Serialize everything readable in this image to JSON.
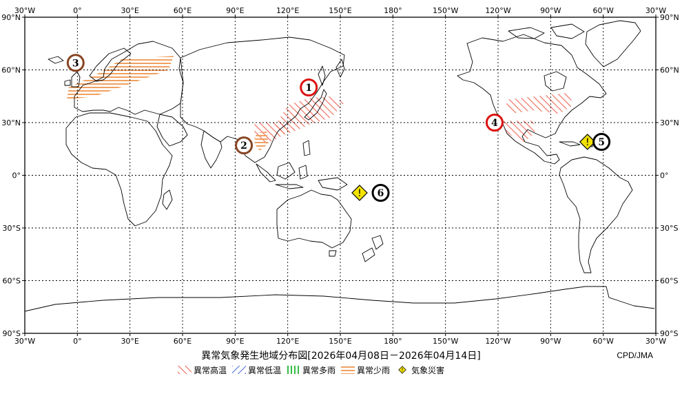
{
  "title": "異常気象発生地域分布図[2026年04月08日－2026年04月14日]",
  "credit": "CPD/JMA",
  "axes": {
    "lon_labels": [
      "30°W",
      "0°",
      "30°E",
      "60°E",
      "90°E",
      "120°E",
      "150°E",
      "180°",
      "150°W",
      "120°W",
      "90°W",
      "60°W",
      "30°W"
    ],
    "lat_labels": [
      "90°N",
      "60°N",
      "30°N",
      "0°",
      "30°S",
      "60°S",
      "90°S"
    ]
  },
  "legend": [
    {
      "label": "異常高温",
      "color": "#ee6655",
      "pattern": "hot"
    },
    {
      "label": "異常低温",
      "color": "#4466dd",
      "pattern": "cold"
    },
    {
      "label": "異常多雨",
      "color": "#33bb44",
      "pattern": "wet"
    },
    {
      "label": "異常少雨",
      "color": "#f0a060",
      "pattern": "dry"
    },
    {
      "label": "気象災害",
      "color": "#f2e200",
      "pattern": "disaster"
    }
  ],
  "markers": [
    {
      "num": "1",
      "color": "#dd1111",
      "lon": 132,
      "lat": 50
    },
    {
      "num": "2",
      "color": "#884422",
      "lon": 95,
      "lat": 17
    },
    {
      "num": "3",
      "color": "#884422",
      "lon": -1,
      "lat": 64
    },
    {
      "num": "4",
      "color": "#dd1111",
      "lon": -122,
      "lat": 30
    },
    {
      "num": "5",
      "color": "#000000",
      "lon": -61,
      "lat": 19
    },
    {
      "num": "6",
      "color": "#000000",
      "lon": 173,
      "lat": -10
    }
  ],
  "disasters": [
    {
      "lon": -69,
      "lat": 19
    },
    {
      "lon": 161,
      "lat": -10
    }
  ],
  "anomaly_areas": [
    {
      "type": "hot",
      "coords": [
        [
          -116,
          43
        ],
        [
          -80,
          47
        ],
        [
          -77,
          40
        ],
        [
          -85,
          35
        ],
        [
          -100,
          37
        ],
        [
          -113,
          35
        ]
      ]
    },
    {
      "type": "hot",
      "coords": [
        [
          -117,
          31
        ],
        [
          -100,
          31
        ],
        [
          -99,
          24
        ],
        [
          -105,
          19
        ],
        [
          -110,
          21
        ],
        [
          -116,
          25
        ]
      ]
    },
    {
      "type": "hot",
      "coords": [
        [
          120,
          40
        ],
        [
          132,
          44
        ],
        [
          146,
          45
        ],
        [
          152,
          41
        ],
        [
          145,
          33
        ],
        [
          133,
          29
        ],
        [
          119,
          23
        ],
        [
          112,
          27
        ]
      ]
    },
    {
      "type": "hot",
      "coords": [
        [
          101,
          30
        ],
        [
          120,
          30
        ],
        [
          120,
          24
        ],
        [
          108,
          18
        ],
        [
          101,
          21
        ]
      ]
    },
    {
      "type": "dry",
      "coords": [
        [
          -5,
          50
        ],
        [
          10,
          57
        ],
        [
          25,
          66
        ],
        [
          55,
          68
        ],
        [
          52,
          60
        ],
        [
          30,
          52
        ],
        [
          10,
          45
        ],
        [
          -6,
          43
        ]
      ]
    },
    {
      "type": "dry",
      "coords": [
        [
          102,
          24
        ],
        [
          108,
          25
        ],
        [
          109,
          18
        ],
        [
          104,
          14
        ],
        [
          101,
          18
        ]
      ]
    }
  ]
}
